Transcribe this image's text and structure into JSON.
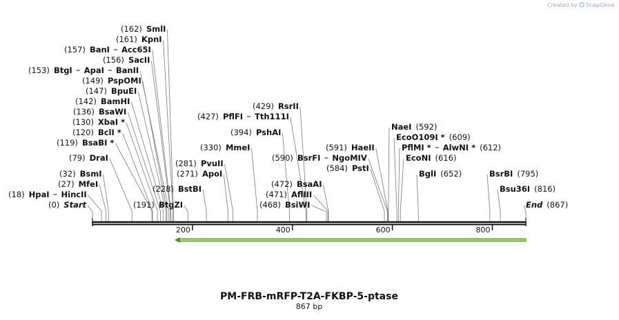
{
  "watermark": {
    "prefix": "Created by",
    "brand": "SnapGene"
  },
  "title": "PM-FRB-mRFP-T2A-FKBP-5-ptase",
  "subtitle": "867 bp",
  "map": {
    "length": 867,
    "ticks": [
      200,
      400,
      600,
      800
    ],
    "feature": {
      "start": 164,
      "end": 867,
      "direction": "reverse",
      "color": "#9fd46a",
      "stroke": "#4c8f22"
    },
    "sites": [
      {
        "label": "(162)",
        "position": 162,
        "names": [
          "SmlI"
        ],
        "side": "left"
      },
      {
        "label": "(161)",
        "position": 161,
        "names": [
          "KpnI"
        ],
        "side": "left"
      },
      {
        "label": "(157)",
        "position": 157,
        "names": [
          "BanI",
          "Acc65I"
        ],
        "side": "left"
      },
      {
        "label": "(156)",
        "position": 156,
        "names": [
          "SacII"
        ],
        "side": "left"
      },
      {
        "label": "(153)",
        "position": 153,
        "names": [
          "BtgI",
          "ApaI",
          "BanII"
        ],
        "side": "left"
      },
      {
        "label": "(149)",
        "position": 149,
        "names": [
          "PspOMI"
        ],
        "side": "left"
      },
      {
        "label": "(147)",
        "position": 147,
        "names": [
          "BpuEI"
        ],
        "side": "left"
      },
      {
        "label": "(142)",
        "position": 142,
        "names": [
          "BamHI"
        ],
        "side": "left"
      },
      {
        "label": "(136)",
        "position": 136,
        "names": [
          "BsaWI"
        ],
        "side": "left"
      },
      {
        "label": "(130)",
        "position": 130,
        "names": [
          "XbaI *"
        ],
        "side": "left"
      },
      {
        "label": "(120)",
        "position": 120,
        "names": [
          "BclI *"
        ],
        "side": "left"
      },
      {
        "label": "(119)",
        "position": 119,
        "names": [
          "BsaBI *"
        ],
        "side": "left"
      },
      {
        "label": "(79)",
        "position": 79,
        "names": [
          "DraI"
        ],
        "side": "left"
      },
      {
        "label": "(32)",
        "position": 32,
        "names": [
          "BsmI"
        ],
        "side": "left"
      },
      {
        "label": "(27)",
        "position": 27,
        "names": [
          "MfeI"
        ],
        "side": "left"
      },
      {
        "label": "(18)",
        "position": 18,
        "names": [
          "HpaI",
          "HincII"
        ],
        "side": "left"
      },
      {
        "label": "(0)",
        "position": 0,
        "names": [
          "Start"
        ],
        "side": "left",
        "italic": true
      },
      {
        "label": "(191)",
        "position": 191,
        "names": [
          "BtgZI"
        ],
        "side": "left"
      },
      {
        "label": "(228)",
        "position": 228,
        "names": [
          "BstBI"
        ],
        "side": "left"
      },
      {
        "label": "(271)",
        "position": 271,
        "names": [
          "ApoI"
        ],
        "side": "left"
      },
      {
        "label": "(281)",
        "position": 281,
        "names": [
          "PvuII"
        ],
        "side": "left"
      },
      {
        "label": "(330)",
        "position": 330,
        "names": [
          "MmeI"
        ],
        "side": "left"
      },
      {
        "label": "(394)",
        "position": 394,
        "names": [
          "PshAI"
        ],
        "side": "left"
      },
      {
        "label": "(427)",
        "position": 427,
        "names": [
          "PflFI",
          "Tth111I"
        ],
        "side": "left"
      },
      {
        "label": "(429)",
        "position": 429,
        "names": [
          "RsrII"
        ],
        "side": "left"
      },
      {
        "label": "(590)",
        "position": 590,
        "names": [
          "BsrFI",
          "NgoMIV"
        ],
        "side": "left"
      },
      {
        "label": "(472)",
        "position": 472,
        "names": [
          "BsaAI"
        ],
        "side": "left"
      },
      {
        "label": "(471)",
        "position": 471,
        "names": [
          "AflIII"
        ],
        "side": "left"
      },
      {
        "label": "(468)",
        "position": 468,
        "names": [
          "BsiWI"
        ],
        "side": "left"
      },
      {
        "label": "(591)",
        "position": 591,
        "names": [
          "HaeII"
        ],
        "side": "left"
      },
      {
        "label": "(584)",
        "position": 584,
        "names": [
          "PstI"
        ],
        "side": "left"
      },
      {
        "label": "(592)",
        "position": 592,
        "names": [
          "NaeI"
        ],
        "side": "right"
      },
      {
        "label": "(609)",
        "position": 609,
        "names": [
          "EcoO109I *"
        ],
        "side": "right"
      },
      {
        "label": "(612)",
        "position": 612,
        "names": [
          "PflMI *",
          "AlwNI *"
        ],
        "side": "right"
      },
      {
        "label": "(616)",
        "position": 616,
        "names": [
          "EcoNI"
        ],
        "side": "right"
      },
      {
        "label": "(652)",
        "position": 652,
        "names": [
          "BglI"
        ],
        "side": "right"
      },
      {
        "label": "(795)",
        "position": 795,
        "names": [
          "BsrBI"
        ],
        "side": "right"
      },
      {
        "label": "(816)",
        "position": 816,
        "names": [
          "Bsu36I"
        ],
        "side": "right"
      },
      {
        "label": "(867)",
        "position": 867,
        "names": [
          "End"
        ],
        "side": "right",
        "italic": true
      }
    ]
  }
}
